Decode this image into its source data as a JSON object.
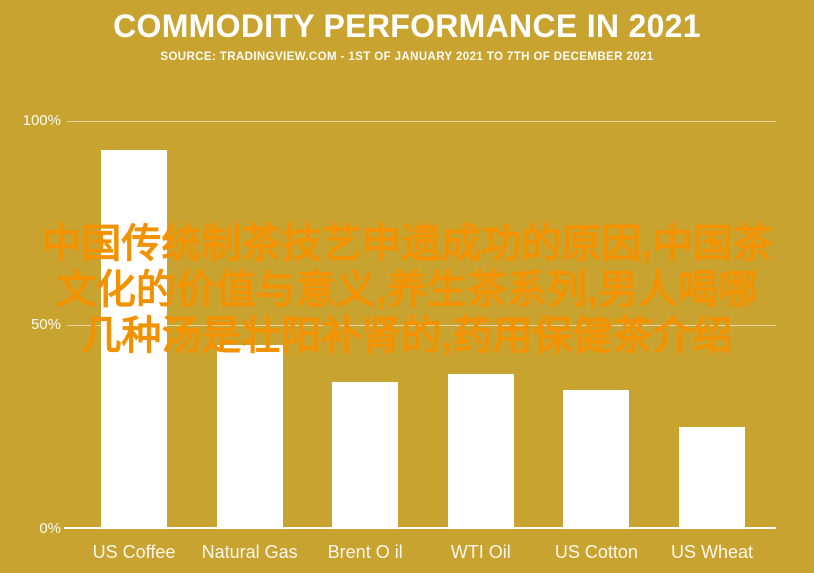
{
  "page": {
    "background_color": "#C8A330",
    "accent_text_color": "#F39200",
    "bar_color": "#FFFFFF"
  },
  "header": {
    "title": "COMMODITY PERFORMANCE IN 2021",
    "subtitle": "SOURCE: TRADINGVIEW.COM - 1ST OF JANUARY 2021 TO 7TH OF DECEMBER 2021"
  },
  "overlay": {
    "lines": [
      "中国传统制茶技艺申遗成功的原因,中国茶",
      "文化的价值与意义,养生茶系列,男人喝哪",
      "几种汤是壮阳补肾的,药用保健茶介绍"
    ]
  },
  "chart_data": {
    "type": "bar",
    "title": "COMMODITY PERFORMANCE IN 2021",
    "subtitle": "SOURCE: TRADINGVIEW.COM - 1ST OF JANUARY 2021 TO 7TH OF DECEMBER 2021",
    "categories": [
      "US Coffee",
      "Natural Gas",
      "Brent O il",
      "WTI Oil",
      "US Cotton",
      "US Wheat"
    ],
    "values": [
      93,
      45,
      36,
      38,
      34,
      25
    ],
    "unit": "%",
    "xlabel": "",
    "ylabel": "",
    "ylim": [
      0,
      100
    ],
    "yticks": [
      100,
      50,
      0
    ],
    "ytick_labels": [
      "100%",
      "50%",
      "0%"
    ],
    "grid": true,
    "legend_position": "none",
    "bar_color": "#FFFFFF"
  }
}
